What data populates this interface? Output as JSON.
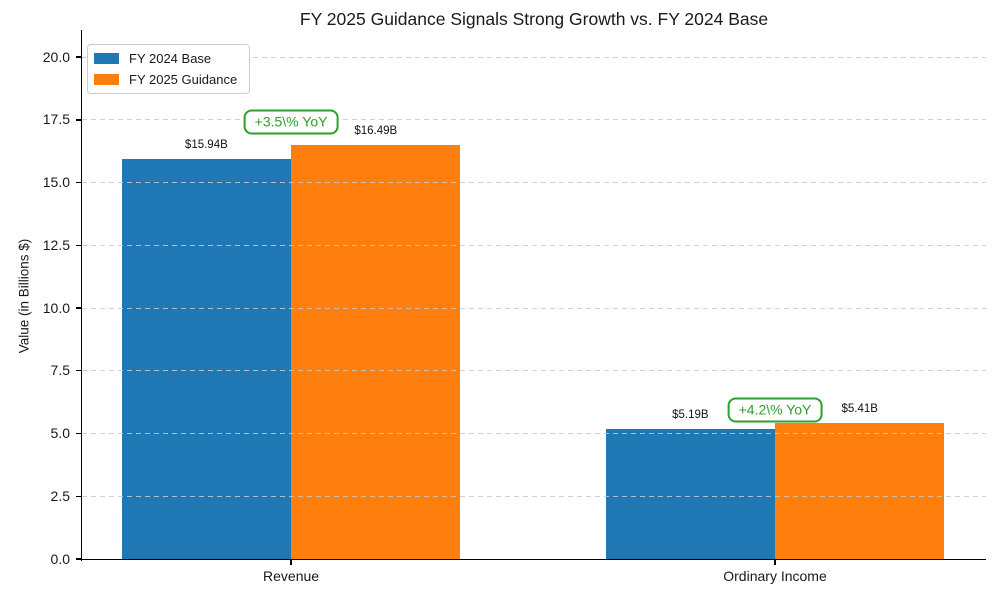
{
  "chart_data": {
    "type": "bar",
    "title": "FY 2025 Guidance Signals Strong Growth vs. FY 2024 Base",
    "ylabel": "Value (in Billions $)",
    "xlabel": "",
    "categories": [
      "Revenue",
      "Ordinary Income"
    ],
    "series": [
      {
        "name": "FY 2024 Base",
        "color": "#1f77b4",
        "values": [
          15.94,
          5.19
        ],
        "value_labels": [
          "$15.94B",
          "$5.19B"
        ]
      },
      {
        "name": "FY 2025 Guidance",
        "color": "#ff7f0e",
        "values": [
          16.49,
          5.41
        ],
        "value_labels": [
          "$16.49B",
          "$5.41B"
        ]
      }
    ],
    "annotations": [
      {
        "text": "+3.5\\% YoY",
        "category_index": 0,
        "y_value": 17.4,
        "color": "#2ca02c"
      },
      {
        "text": "+4.2\\% YoY",
        "category_index": 1,
        "y_value": 5.95,
        "color": "#2ca02c"
      }
    ],
    "yticks": [
      0.0,
      2.5,
      5.0,
      7.5,
      10.0,
      12.5,
      15.0,
      17.5,
      20.0
    ],
    "ytick_labels": [
      "0.0",
      "2.5",
      "5.0",
      "7.5",
      "10.0",
      "12.5",
      "15.0",
      "17.5",
      "20.0"
    ],
    "ylim": [
      0,
      21
    ],
    "bar_width": 0.35,
    "grid": "dashed-horizontal-above-bars",
    "legend_position": "upper-left",
    "colors": {
      "grid": "#c9c9c9",
      "spine": "#000000",
      "annotation_green": "#2ca02c"
    }
  }
}
